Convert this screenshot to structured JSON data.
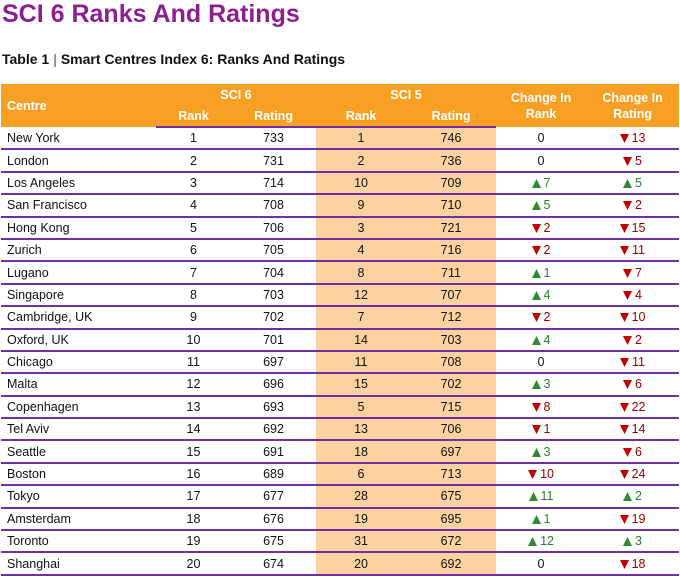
{
  "title": "SCI 6 Ranks And Ratings",
  "caption": {
    "label": "Table 1",
    "separator": "|",
    "text": "Smart Centres Index 6: Ranks And Ratings"
  },
  "table": {
    "header": {
      "centre": "Centre",
      "sci6": "SCI 6",
      "sci5": "SCI 5",
      "change_rank": "Change In Rank",
      "change_rating": "Change In Rating",
      "sub": [
        "Rank",
        "Rating",
        "Rank",
        "Rating"
      ]
    },
    "rows": [
      [
        "New York",
        "1",
        "733",
        "1",
        "746",
        {
          "text": "0"
        },
        {
          "dir": "down",
          "text": "13"
        }
      ],
      [
        "London",
        "2",
        "731",
        "2",
        "736",
        {
          "text": "0"
        },
        {
          "dir": "down",
          "text": "5"
        }
      ],
      [
        "Los Angeles",
        "3",
        "714",
        "10",
        "709",
        {
          "dir": "up",
          "text": "7"
        },
        {
          "dir": "up",
          "text": "5"
        }
      ],
      [
        "San Francisco",
        "4",
        "708",
        "9",
        "710",
        {
          "dir": "up",
          "text": "5"
        },
        {
          "dir": "down",
          "text": "2"
        }
      ],
      [
        "Hong Kong",
        "5",
        "706",
        "3",
        "721",
        {
          "dir": "down",
          "text": "2"
        },
        {
          "dir": "down",
          "text": "15"
        }
      ],
      [
        "Zurich",
        "6",
        "705",
        "4",
        "716",
        {
          "dir": "down",
          "text": "2"
        },
        {
          "dir": "down",
          "text": "11"
        }
      ],
      [
        "Lugano",
        "7",
        "704",
        "8",
        "711",
        {
          "dir": "up",
          "text": "1"
        },
        {
          "dir": "down",
          "text": "7"
        }
      ],
      [
        "Singapore",
        "8",
        "703",
        "12",
        "707",
        {
          "dir": "up",
          "text": "4"
        },
        {
          "dir": "down",
          "text": "4"
        }
      ],
      [
        "Cambridge, UK",
        "9",
        "702",
        "7",
        "712",
        {
          "dir": "down",
          "text": "2"
        },
        {
          "dir": "down",
          "text": "10"
        }
      ],
      [
        "Oxford, UK",
        "10",
        "701",
        "14",
        "703",
        {
          "dir": "up",
          "text": "4"
        },
        {
          "dir": "down",
          "text": "2"
        }
      ],
      [
        "Chicago",
        "11",
        "697",
        "11",
        "708",
        {
          "text": "0"
        },
        {
          "dir": "down",
          "text": "11"
        }
      ],
      [
        "Malta",
        "12",
        "696",
        "15",
        "702",
        {
          "dir": "up",
          "text": "3"
        },
        {
          "dir": "down",
          "text": "6"
        }
      ],
      [
        "Copenhagen",
        "13",
        "693",
        "5",
        "715",
        {
          "dir": "down",
          "text": "8"
        },
        {
          "dir": "down",
          "text": "22"
        }
      ],
      [
        "Tel Aviv",
        "14",
        "692",
        "13",
        "706",
        {
          "dir": "down",
          "text": "1"
        },
        {
          "dir": "down",
          "text": "14"
        }
      ],
      [
        "Seattle",
        "15",
        "691",
        "18",
        "697",
        {
          "dir": "up",
          "text": "3"
        },
        {
          "dir": "down",
          "text": "6"
        }
      ],
      [
        "Boston",
        "16",
        "689",
        "6",
        "713",
        {
          "dir": "down",
          "text": "10"
        },
        {
          "dir": "down",
          "text": "24"
        }
      ],
      [
        "Tokyo",
        "17",
        "677",
        "28",
        "675",
        {
          "dir": "up",
          "text": "11"
        },
        {
          "dir": "up",
          "text": "2"
        }
      ],
      [
        "Amsterdam",
        "18",
        "676",
        "19",
        "695",
        {
          "dir": "up",
          "text": "1"
        },
        {
          "dir": "down",
          "text": "19"
        }
      ],
      [
        "Toronto",
        "19",
        "675",
        "31",
        "672",
        {
          "dir": "up",
          "text": "12"
        },
        {
          "dir": "up",
          "text": "3"
        }
      ],
      [
        "Shanghai",
        "20",
        "674",
        "20",
        "692",
        {
          "text": "0"
        },
        {
          "dir": "down",
          "text": "18"
        }
      ]
    ]
  }
}
